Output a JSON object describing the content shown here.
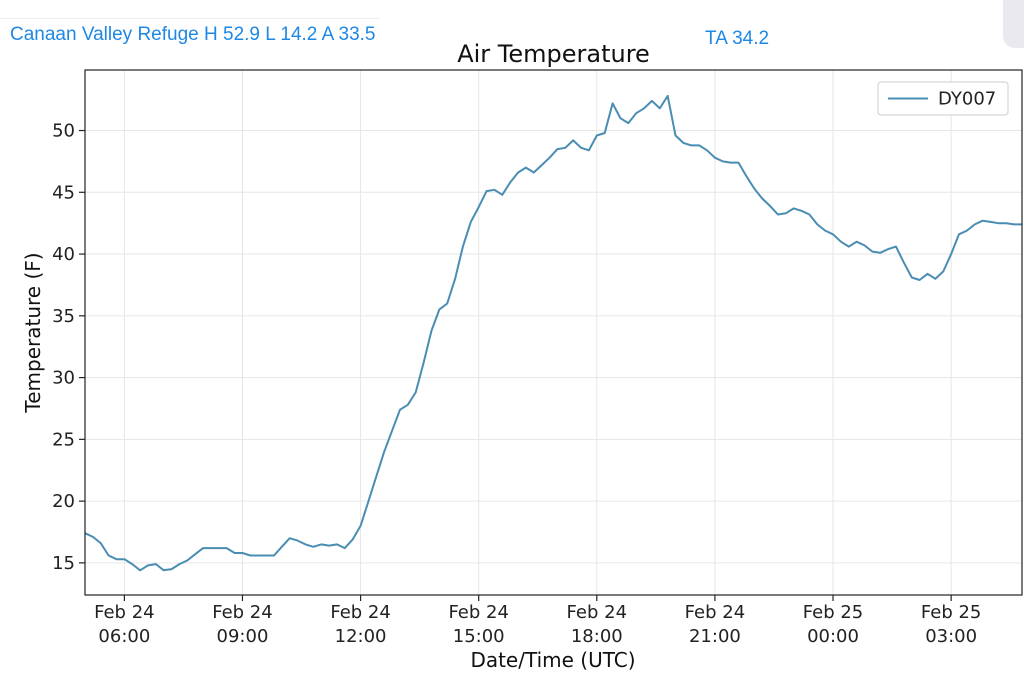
{
  "header": {
    "station_text": "Canaan Valley Refuge H 52.9 L 14.2 A 33.5",
    "ta_text": "TA 34.2"
  },
  "colors": {
    "link": "#1e88e5",
    "line": "#4a8db3",
    "grid": "#e6e6e6"
  },
  "chart_data": {
    "type": "line",
    "title": "Air Temperature",
    "xlabel": "Date/Time (UTC)",
    "ylabel": "Temperature (F)",
    "x_unit": "hours",
    "x_ticks": [
      {
        "x": 6,
        "label": [
          "Feb 24",
          "06:00"
        ]
      },
      {
        "x": 9,
        "label": [
          "Feb 24",
          "09:00"
        ]
      },
      {
        "x": 12,
        "label": [
          "Feb 24",
          "12:00"
        ]
      },
      {
        "x": 15,
        "label": [
          "Feb 24",
          "15:00"
        ]
      },
      {
        "x": 18,
        "label": [
          "Feb 24",
          "18:00"
        ]
      },
      {
        "x": 21,
        "label": [
          "Feb 24",
          "21:00"
        ]
      },
      {
        "x": 24,
        "label": [
          "Feb 25",
          "00:00"
        ]
      },
      {
        "x": 27,
        "label": [
          "Feb 25",
          "03:00"
        ]
      }
    ],
    "y_ticks": [
      15,
      20,
      25,
      30,
      35,
      40,
      45,
      50
    ],
    "xlim": [
      5.0,
      28.8
    ],
    "ylim": [
      12.4,
      54.9
    ],
    "grid": true,
    "legend_position": "top-right",
    "series": [
      {
        "name": "DY007",
        "x": [
          5.0,
          5.2,
          5.4,
          5.6,
          5.8,
          6.0,
          6.2,
          6.4,
          6.6,
          6.8,
          7.0,
          7.2,
          7.4,
          7.6,
          7.8,
          8.0,
          8.2,
          8.4,
          8.6,
          8.8,
          9.0,
          9.2,
          9.4,
          9.6,
          9.8,
          10.0,
          10.2,
          10.4,
          10.6,
          10.8,
          11.0,
          11.2,
          11.4,
          11.6,
          11.8,
          12.0,
          12.2,
          12.4,
          12.6,
          12.8,
          13.0,
          13.2,
          13.4,
          13.6,
          13.8,
          14.0,
          14.2,
          14.4,
          14.6,
          14.8,
          15.0,
          15.2,
          15.4,
          15.6,
          15.8,
          16.0,
          16.2,
          16.4,
          16.6,
          16.8,
          17.0,
          17.2,
          17.4,
          17.6,
          17.8,
          18.0,
          18.2,
          18.4,
          18.6,
          18.8,
          19.0,
          19.2,
          19.4,
          19.6,
          19.8,
          20.0,
          20.2,
          20.4,
          20.6,
          20.8,
          21.0,
          21.2,
          21.4,
          21.6,
          21.8,
          22.0,
          22.2,
          22.4,
          22.6,
          22.8,
          23.0,
          23.2,
          23.4,
          23.6,
          23.8,
          24.0,
          24.2,
          24.4,
          24.6,
          24.8,
          25.0,
          25.2,
          25.4,
          25.6,
          25.8,
          26.0,
          26.2,
          26.4,
          26.6,
          26.8,
          27.0,
          27.2,
          27.4,
          27.6,
          27.8,
          28.0,
          28.2,
          28.4,
          28.6,
          28.8
        ],
        "y": [
          17.4,
          17.1,
          16.6,
          15.6,
          15.3,
          15.3,
          14.9,
          14.4,
          14.8,
          14.9,
          14.4,
          14.5,
          14.9,
          15.2,
          15.7,
          16.2,
          16.2,
          16.2,
          16.2,
          15.8,
          15.8,
          15.6,
          15.6,
          15.6,
          15.6,
          16.3,
          17.0,
          16.8,
          16.5,
          16.3,
          16.5,
          16.4,
          16.5,
          16.2,
          16.9,
          18.0,
          20.0,
          22.0,
          24.0,
          25.7,
          27.4,
          27.8,
          28.8,
          31.2,
          33.8,
          35.5,
          36.0,
          38.0,
          40.6,
          42.6,
          43.8,
          45.1,
          45.2,
          44.8,
          45.8,
          46.6,
          47.0,
          46.6,
          47.2,
          47.8,
          48.5,
          48.6,
          49.2,
          48.6,
          48.4,
          49.6,
          49.8,
          52.2,
          51.0,
          50.6,
          51.4,
          51.8,
          52.4,
          51.8,
          52.8,
          49.6,
          49.0,
          48.8,
          48.8,
          48.4,
          47.8,
          47.5,
          47.4,
          47.4,
          46.3,
          45.3,
          44.5,
          43.9,
          43.2,
          43.3,
          43.7,
          43.5,
          43.2,
          42.4,
          41.9,
          41.6,
          41.0,
          40.6,
          41.0,
          40.7,
          40.2,
          40.1,
          40.4,
          40.6,
          39.3,
          38.1,
          37.9,
          38.4,
          38.0,
          38.6,
          40.0,
          41.6,
          41.9,
          42.4,
          42.7,
          42.6,
          42.5,
          42.5,
          42.4,
          42.4
        ]
      }
    ]
  }
}
